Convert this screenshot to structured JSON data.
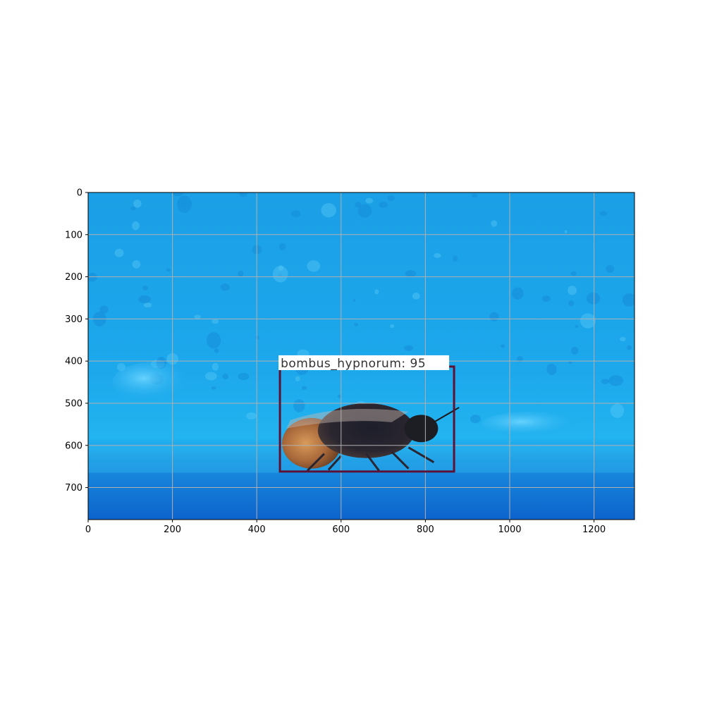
{
  "image": {
    "subject": "bumblebee",
    "background_color": "#1ea6e8",
    "ground_color": "#0d6fd2"
  },
  "axes": {
    "x_ticks": [
      0,
      200,
      400,
      600,
      800,
      1000,
      1200
    ],
    "y_ticks": [
      0,
      100,
      200,
      300,
      400,
      500,
      600,
      700
    ],
    "x_range": [
      0,
      1296
    ],
    "y_range": [
      776,
      0
    ],
    "grid": true
  },
  "detection": {
    "label": "bombus_hypnorum:  95",
    "class_name": "bombus_hypnorum",
    "score": 95,
    "box": {
      "x_min": 455,
      "y_min": 413,
      "x_max": 868,
      "y_max": 662
    },
    "box_color": "#5c1235",
    "label_bg_color": "#ffffff"
  },
  "chart_data": {
    "type": "image",
    "x_ticks": [
      0,
      200,
      400,
      600,
      800,
      1000,
      1200
    ],
    "y_ticks": [
      0,
      100,
      200,
      300,
      400,
      500,
      600,
      700
    ],
    "xlim": [
      0,
      1296
    ],
    "ylim": [
      776,
      0
    ],
    "grid": true
  }
}
